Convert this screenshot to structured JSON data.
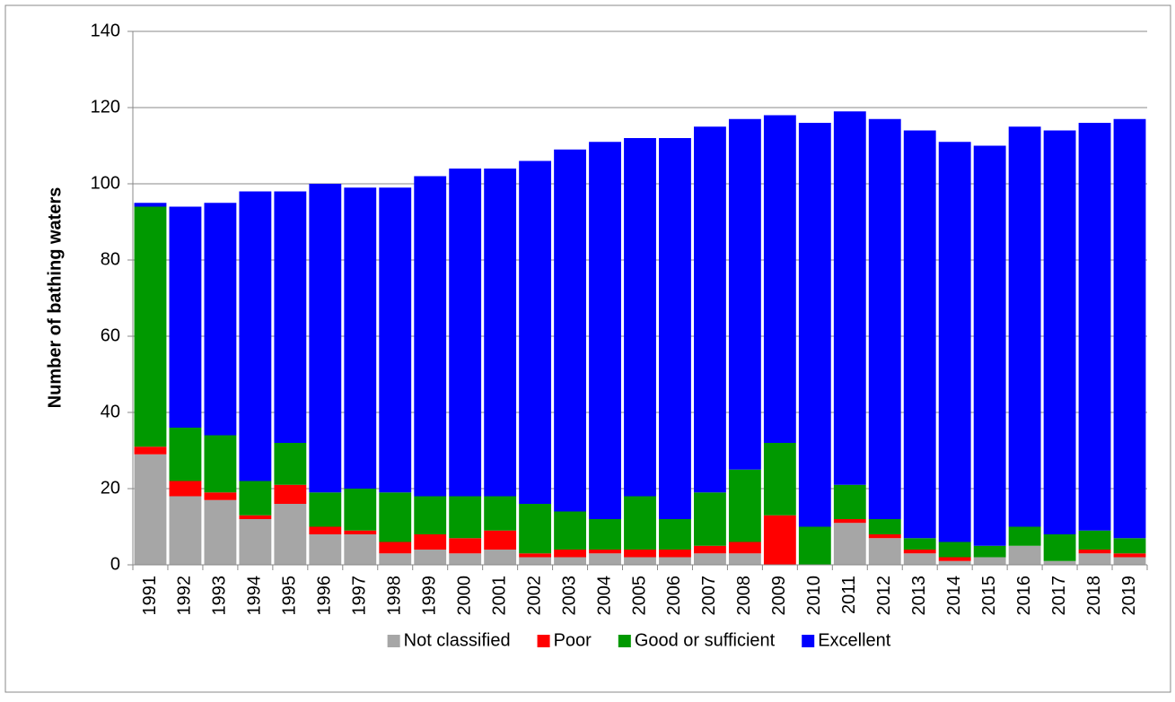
{
  "chart_data": {
    "type": "stacked_bar",
    "y_label": "Number of bathing waters",
    "categories": [
      "1991",
      "1992",
      "1993",
      "1994",
      "1995",
      "1996",
      "1997",
      "1998",
      "1999",
      "2000",
      "2001",
      "2002",
      "2003",
      "2004",
      "2005",
      "2006",
      "2007",
      "2008",
      "2009",
      "2010",
      "2011",
      "2012",
      "2013",
      "2014",
      "2015",
      "2016",
      "2017",
      "2018",
      "2019"
    ],
    "series": [
      {
        "name": "Not classified",
        "color": "#a6a6a6",
        "values": [
          29,
          18,
          17,
          12,
          16,
          8,
          8,
          3,
          4,
          3,
          4,
          2,
          2,
          3,
          2,
          2,
          3,
          3,
          0,
          0,
          11,
          7,
          3,
          1,
          2,
          5,
          1,
          3,
          2
        ]
      },
      {
        "name": "Poor",
        "color": "#ff0000",
        "values": [
          2,
          4,
          2,
          1,
          5,
          2,
          1,
          3,
          4,
          4,
          5,
          1,
          2,
          1,
          2,
          2,
          2,
          3,
          13,
          0,
          1,
          1,
          1,
          1,
          0,
          0,
          0,
          1,
          1
        ]
      },
      {
        "name": "Good or sufficient",
        "color": "#009900",
        "values": [
          63,
          14,
          15,
          9,
          11,
          9,
          11,
          13,
          10,
          11,
          9,
          13,
          10,
          8,
          14,
          8,
          14,
          19,
          19,
          10,
          9,
          4,
          3,
          4,
          3,
          5,
          7,
          5,
          4
        ]
      },
      {
        "name": "Excellent",
        "color": "#0000ff",
        "values": [
          1,
          58,
          61,
          76,
          66,
          81,
          79,
          80,
          84,
          86,
          86,
          90,
          95,
          99,
          94,
          100,
          96,
          92,
          86,
          106,
          98,
          105,
          107,
          105,
          105,
          105,
          106,
          107,
          110
        ]
      }
    ],
    "ylim": [
      0,
      140
    ],
    "yticks": [
      0,
      20,
      40,
      60,
      80,
      100,
      120,
      140
    ],
    "grid": true,
    "legend": "bottom"
  }
}
